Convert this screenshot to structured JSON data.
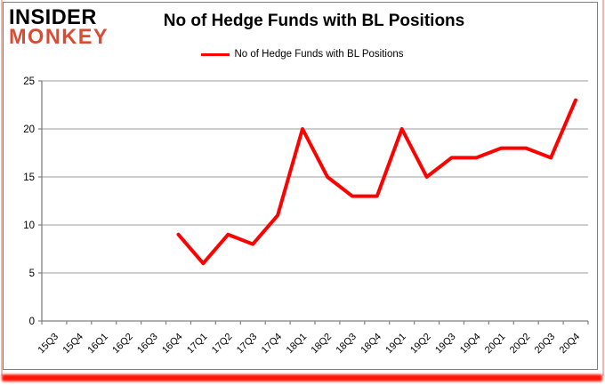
{
  "logo": {
    "line1": "INSIDER",
    "line2": "MONKEY"
  },
  "header": {
    "title": "No of Hedge Funds with BL Positions"
  },
  "legend": {
    "label": "No of Hedge Funds with BL Positions"
  },
  "colors": {
    "series_red": "#ff0000",
    "logo_red": "#d94b33",
    "grid": "#9b9b9b",
    "axis": "#808080",
    "frame_border": "#7f7f7f",
    "brand_stripe": "#ff1505",
    "side_glow": "#f4b7ae",
    "text": "#000000"
  },
  "chart_data": {
    "type": "line",
    "title": "No of Hedge Funds with BL Positions",
    "xlabel": "",
    "ylabel": "",
    "categories": [
      "15Q3",
      "15Q4",
      "16Q1",
      "16Q2",
      "16Q3",
      "16Q4",
      "17Q1",
      "17Q2",
      "17Q3",
      "17Q4",
      "18Q1",
      "18Q2",
      "18Q3",
      "18Q4",
      "19Q1",
      "19Q2",
      "19Q3",
      "19Q4",
      "20Q1",
      "20Q2",
      "20Q3",
      "20Q4"
    ],
    "series": [
      {
        "name": "No of Hedge Funds with BL Positions",
        "color": "#ff0000",
        "values": [
          null,
          null,
          null,
          null,
          null,
          9,
          6,
          9,
          8,
          11,
          20,
          15,
          13,
          13,
          20,
          15,
          17,
          17,
          18,
          18,
          17,
          23
        ]
      }
    ],
    "ylim": [
      0,
      25
    ],
    "ytick_step": 5,
    "yticks": [
      0,
      5,
      10,
      15,
      20,
      25
    ],
    "grid": true,
    "legend_position": "top-center"
  }
}
